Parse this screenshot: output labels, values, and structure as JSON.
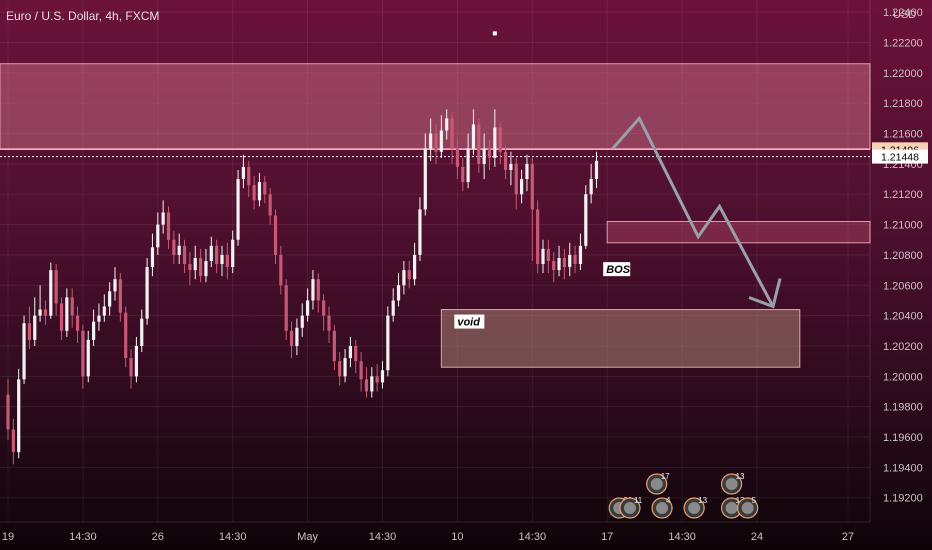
{
  "chart_data": {
    "type": "candlestick",
    "title": "Euro / U.S. Dollar, 4h, FXCM",
    "currency": "USD",
    "ylim": [
      1.1904,
      1.2248
    ],
    "y_ticks": [
      "1.22400",
      "1.22200",
      "1.22000",
      "1.21800",
      "1.21600",
      "1.21400",
      "1.21200",
      "1.21000",
      "1.20800",
      "1.20600",
      "1.20400",
      "1.20200",
      "1.20000",
      "1.19800",
      "1.19600",
      "1.19400",
      "1.19200"
    ],
    "x_ticks": [
      {
        "label": "19",
        "bar": 0
      },
      {
        "label": "14:30",
        "bar": 14
      },
      {
        "label": "26",
        "bar": 28
      },
      {
        "label": "14:30",
        "bar": 42
      },
      {
        "label": "May",
        "bar": 56
      },
      {
        "label": "14:30",
        "bar": 70
      },
      {
        "label": "10",
        "bar": 84
      },
      {
        "label": "14:30",
        "bar": 98
      },
      {
        "label": "17",
        "bar": 112
      },
      {
        "label": "14:30",
        "bar": 126
      },
      {
        "label": "24",
        "bar": 140
      },
      {
        "label": "27",
        "bar": 157
      }
    ],
    "price_labels": [
      {
        "text": "1.21496",
        "value": 1.21496,
        "fill": "#f7d2b6",
        "color": "#000000"
      },
      {
        "text": "1.21448",
        "value": 1.21448,
        "fill": "#ffffff",
        "color": "#000000"
      }
    ],
    "candles": [
      [
        1.1988,
        1.1965,
        1.1998,
        1.1958
      ],
      [
        1.1965,
        1.195,
        1.1972,
        1.1942
      ],
      [
        1.195,
        1.1998,
        1.2005,
        1.1946
      ],
      [
        1.1998,
        1.2035,
        1.204,
        1.1995
      ],
      [
        1.2035,
        1.2024,
        1.2046,
        1.2018
      ],
      [
        1.2024,
        1.204,
        1.2052,
        1.202
      ],
      [
        1.204,
        1.2044,
        1.206,
        1.2036
      ],
      [
        1.2044,
        1.204,
        1.205,
        1.2034
      ],
      [
        1.204,
        1.207,
        1.2075,
        1.2038
      ],
      [
        1.207,
        1.2048,
        1.2074,
        1.204
      ],
      [
        1.2048,
        1.203,
        1.2052,
        1.2024
      ],
      [
        1.203,
        1.2052,
        1.2058,
        1.2026
      ],
      [
        1.2052,
        1.204,
        1.2058,
        1.2032
      ],
      [
        1.204,
        1.203,
        1.2046,
        1.2022
      ],
      [
        1.203,
        1.2,
        1.2034,
        1.1992
      ],
      [
        1.2,
        1.2024,
        1.203,
        1.1996
      ],
      [
        1.2024,
        1.2036,
        1.2044,
        1.202
      ],
      [
        1.2036,
        1.204,
        1.2048,
        1.203
      ],
      [
        1.204,
        1.2046,
        1.2054,
        1.2036
      ],
      [
        1.2046,
        1.2056,
        1.2062,
        1.204
      ],
      [
        1.2056,
        1.2064,
        1.2072,
        1.205
      ],
      [
        1.2064,
        1.2042,
        1.2068,
        1.2036
      ],
      [
        1.2042,
        1.2012,
        1.2046,
        1.2006
      ],
      [
        1.2012,
        1.2,
        1.2018,
        1.1992
      ],
      [
        1.2,
        1.202,
        1.2026,
        1.1996
      ],
      [
        1.202,
        1.2038,
        1.2044,
        1.2016
      ],
      [
        1.2038,
        1.2072,
        1.2078,
        1.2034
      ],
      [
        1.2072,
        1.2085,
        1.2094,
        1.2066
      ],
      [
        1.2085,
        1.21,
        1.2108,
        1.208
      ],
      [
        1.21,
        1.2108,
        1.2116,
        1.2094
      ],
      [
        1.2108,
        1.209,
        1.2112,
        1.2084
      ],
      [
        1.209,
        1.208,
        1.2096,
        1.2074
      ],
      [
        1.208,
        1.2086,
        1.2094,
        1.2074
      ],
      [
        1.2086,
        1.2074,
        1.209,
        1.2068
      ],
      [
        1.2074,
        1.207,
        1.2082,
        1.206
      ],
      [
        1.207,
        1.2078,
        1.2086,
        1.2064
      ],
      [
        1.2078,
        1.2066,
        1.2084,
        1.2062
      ],
      [
        1.2066,
        1.2076,
        1.2084,
        1.2062
      ],
      [
        1.2076,
        1.2086,
        1.2092,
        1.2072
      ],
      [
        1.2086,
        1.2074,
        1.209,
        1.2068
      ],
      [
        1.2074,
        1.208,
        1.2086,
        1.2066
      ],
      [
        1.208,
        1.2072,
        1.2088,
        1.2064
      ],
      [
        1.2072,
        1.209,
        1.2096,
        1.2068
      ],
      [
        1.209,
        1.213,
        1.2136,
        1.2086
      ],
      [
        1.213,
        1.2138,
        1.2146,
        1.2124
      ],
      [
        1.2138,
        1.2126,
        1.2142,
        1.2118
      ],
      [
        1.2126,
        1.2116,
        1.2132,
        1.211
      ],
      [
        1.2116,
        1.2128,
        1.2134,
        1.2112
      ],
      [
        1.2128,
        1.212,
        1.2132,
        1.2114
      ],
      [
        1.212,
        1.2106,
        1.2124,
        1.21
      ],
      [
        1.2106,
        1.208,
        1.211,
        1.2074
      ],
      [
        1.208,
        1.206,
        1.2086,
        1.2054
      ],
      [
        1.206,
        1.203,
        1.2064,
        1.2024
      ],
      [
        1.203,
        1.202,
        1.2036,
        1.2012
      ],
      [
        1.202,
        1.2032,
        1.2038,
        1.2014
      ],
      [
        1.2032,
        1.204,
        1.2048,
        1.2026
      ],
      [
        1.204,
        1.205,
        1.2058,
        1.2036
      ],
      [
        1.205,
        1.2064,
        1.207,
        1.2044
      ],
      [
        1.2064,
        1.205,
        1.2068,
        1.2042
      ],
      [
        1.205,
        1.204,
        1.2054,
        1.203
      ],
      [
        1.204,
        1.203,
        1.2046,
        1.2022
      ],
      [
        1.203,
        1.201,
        1.2034,
        1.2004
      ],
      [
        1.201,
        1.2,
        1.2016,
        1.1994
      ],
      [
        1.2,
        1.2012,
        1.2018,
        1.1996
      ],
      [
        1.2012,
        1.202,
        1.2026,
        1.2006
      ],
      [
        1.202,
        1.201,
        1.2024,
        1.2002
      ],
      [
        1.201,
        1.1998,
        1.2016,
        1.199
      ],
      [
        1.1998,
        1.199,
        1.2006,
        1.1986
      ],
      [
        1.199,
        1.2,
        1.2006,
        1.1986
      ],
      [
        1.2,
        1.1996,
        1.2008,
        1.199
      ],
      [
        1.1996,
        1.2004,
        1.201,
        1.1992
      ],
      [
        1.2004,
        1.204,
        1.2046,
        1.2
      ],
      [
        1.204,
        1.205,
        1.2058,
        1.2036
      ],
      [
        1.205,
        1.206,
        1.2068,
        1.2046
      ],
      [
        1.206,
        1.207,
        1.2076,
        1.2054
      ],
      [
        1.207,
        1.2064,
        1.2076,
        1.2058
      ],
      [
        1.2064,
        1.208,
        1.2088,
        1.206
      ],
      [
        1.208,
        1.211,
        1.2118,
        1.2076
      ],
      [
        1.211,
        1.215,
        1.216,
        1.2106
      ],
      [
        1.215,
        1.216,
        1.217,
        1.2142
      ],
      [
        1.216,
        1.2148,
        1.2166,
        1.214
      ],
      [
        1.2148,
        1.2162,
        1.2172,
        1.2144
      ],
      [
        1.2162,
        1.217,
        1.2176,
        1.2156
      ],
      [
        1.217,
        1.215,
        1.2174,
        1.214
      ],
      [
        1.215,
        1.2138,
        1.2156,
        1.213
      ],
      [
        1.2138,
        1.2128,
        1.2144,
        1.2122
      ],
      [
        1.2128,
        1.215,
        1.216,
        1.2124
      ],
      [
        1.215,
        1.2166,
        1.2176,
        1.2146
      ],
      [
        1.2166,
        1.214,
        1.217,
        1.2134
      ],
      [
        1.214,
        1.215,
        1.216,
        1.213
      ],
      [
        1.215,
        1.2144,
        1.2156,
        1.2136
      ],
      [
        1.2144,
        1.2164,
        1.2176,
        1.2138
      ],
      [
        1.2164,
        1.2148,
        1.2168,
        1.214
      ],
      [
        1.2148,
        1.2136,
        1.2152,
        1.213
      ],
      [
        1.2136,
        1.214,
        1.2148,
        1.2126
      ],
      [
        1.214,
        1.212,
        1.2144,
        1.211
      ],
      [
        1.212,
        1.213,
        1.2136,
        1.2114
      ],
      [
        1.213,
        1.214,
        1.2146,
        1.2122
      ],
      [
        1.214,
        1.211,
        1.2144,
        1.2076
      ],
      [
        1.211,
        1.2074,
        1.2116,
        1.2068
      ],
      [
        1.2074,
        1.2084,
        1.209,
        1.2068
      ],
      [
        1.2084,
        1.2076,
        1.209,
        1.2068
      ],
      [
        1.2076,
        1.207,
        1.2082,
        1.2062
      ],
      [
        1.207,
        1.2078,
        1.2086,
        1.2066
      ],
      [
        1.2078,
        1.2072,
        1.2084,
        1.2064
      ],
      [
        1.2072,
        1.208,
        1.2088,
        1.2066
      ],
      [
        1.208,
        1.2074,
        1.2086,
        1.2068
      ],
      [
        1.2074,
        1.2086,
        1.2094,
        1.207
      ],
      [
        1.2086,
        1.212,
        1.2126,
        1.2084
      ],
      [
        1.212,
        1.213,
        1.214,
        1.2114
      ],
      [
        1.213,
        1.2142,
        1.2148,
        1.2124
      ]
    ],
    "zones": [
      {
        "name": "upper-supply-zone",
        "y1": 1.2206,
        "y2": 1.215,
        "from_bar": -2,
        "to_bar": 172,
        "fill": "rgba(225,130,150,0.42)",
        "stroke": "#e89aae"
      },
      {
        "name": "mid-supply-zone",
        "y1": 1.2102,
        "y2": 1.2088,
        "from_bar": 112,
        "to_bar": 172,
        "fill": "rgba(160,60,90,0.55)",
        "stroke": "#e0a0b0"
      },
      {
        "name": "void-zone",
        "y1": 1.2044,
        "y2": 1.2006,
        "from_bar": 81,
        "to_bar": 148,
        "fill": "rgba(170,130,115,0.55)",
        "stroke": "#e3a4b2",
        "label": "void"
      }
    ],
    "bos_label": {
      "text": "BOS",
      "bar": 112,
      "value": 1.2068
    },
    "projection": [
      {
        "bar": 113,
        "value": 1.215
      },
      {
        "bar": 118,
        "value": 1.217
      },
      {
        "bar": 129,
        "value": 1.2092
      },
      {
        "bar": 133,
        "value": 1.2112
      },
      {
        "bar": 143,
        "value": 1.2046
      }
    ],
    "dot": {
      "bar": 91,
      "value": 1.2226
    },
    "event_icons": [
      {
        "bar": 115,
        "label": "20"
      },
      {
        "bar": 117,
        "label": "11"
      },
      {
        "bar": 123,
        "label": "4"
      },
      {
        "bar": 122,
        "label": "17",
        "row": 2
      },
      {
        "bar": 129,
        "label": "13"
      },
      {
        "bar": 136,
        "label": "13"
      },
      {
        "bar": 136,
        "label": "13",
        "row": 2
      },
      {
        "bar": 139,
        "label": "5"
      }
    ]
  },
  "colors": {
    "bull": "#f2f2f2",
    "bear": "#c85874",
    "grid": "rgba(255,255,255,0.07)",
    "projection": "#9aa0a8",
    "axis_text": "#c9c1c5"
  }
}
